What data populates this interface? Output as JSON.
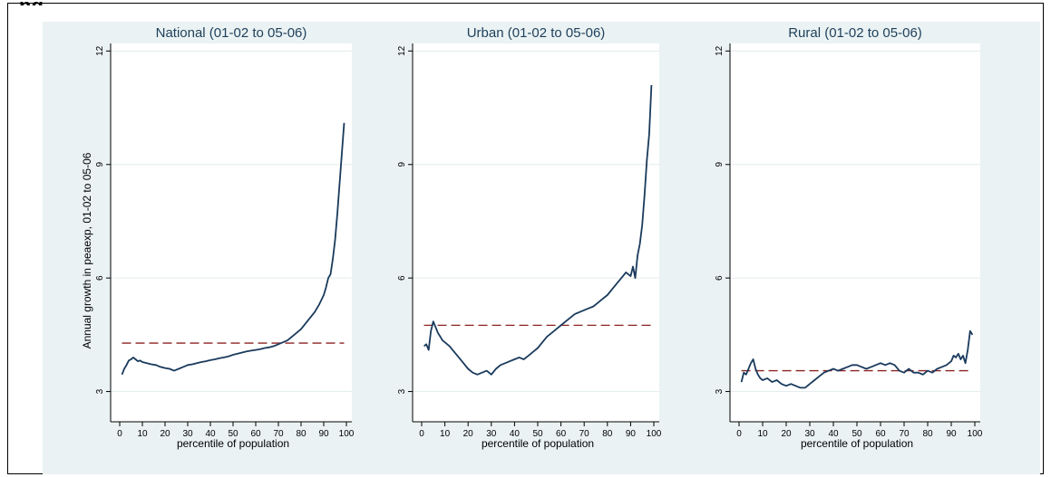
{
  "heading": "ng",
  "colors": {
    "background": "#eaf2f3",
    "plot_bg": "#ffffff",
    "line": "#1a3a5c",
    "mean_line": "#8b2222",
    "grid": "#e3ecee"
  },
  "chart_data": [
    {
      "type": "line",
      "title": "National (01-02 to 05-06)",
      "xlabel": "percentile of population",
      "ylabel": "Annual growth in peaexp, 01-02 to 05-06",
      "xlim": [
        0,
        100
      ],
      "ylim": [
        2.2,
        12.2
      ],
      "xticks": [
        "0",
        "10",
        "20",
        "30",
        "40",
        "50",
        "60",
        "70",
        "80",
        "90",
        "100"
      ],
      "yticks": [
        "3",
        "6",
        "9",
        "12"
      ],
      "mean": 4.28,
      "series": [
        {
          "x": [
            1,
            2,
            3,
            4,
            5,
            6,
            7,
            8,
            9,
            10,
            12,
            14,
            16,
            18,
            20,
            22,
            24,
            26,
            28,
            30,
            32,
            34,
            36,
            38,
            40,
            42,
            44,
            46,
            48,
            50,
            52,
            54,
            56,
            58,
            60,
            62,
            64,
            66,
            68,
            70,
            72,
            74,
            76,
            78,
            80,
            82,
            84,
            86,
            88,
            90,
            91,
            92,
            93,
            94,
            95,
            96,
            97,
            98,
            99
          ],
          "values": [
            3.45,
            3.6,
            3.7,
            3.82,
            3.85,
            3.9,
            3.85,
            3.8,
            3.82,
            3.78,
            3.75,
            3.72,
            3.7,
            3.65,
            3.62,
            3.6,
            3.55,
            3.6,
            3.65,
            3.7,
            3.72,
            3.75,
            3.78,
            3.8,
            3.83,
            3.85,
            3.88,
            3.9,
            3.93,
            3.97,
            4.0,
            4.03,
            4.06,
            4.08,
            4.1,
            4.12,
            4.15,
            4.17,
            4.2,
            4.25,
            4.3,
            4.35,
            4.45,
            4.55,
            4.65,
            4.8,
            4.95,
            5.1,
            5.3,
            5.55,
            5.75,
            6.0,
            6.1,
            6.5,
            7.0,
            7.7,
            8.5,
            9.3,
            10.1
          ]
        }
      ]
    },
    {
      "type": "line",
      "title": "Urban (01-02 to 05-06)",
      "xlabel": "percentile of population",
      "xlim": [
        0,
        100
      ],
      "ylim": [
        2.2,
        12.2
      ],
      "xticks": [
        "0",
        "10",
        "20",
        "30",
        "40",
        "50",
        "60",
        "70",
        "80",
        "90",
        "100"
      ],
      "yticks": [
        "3",
        "6",
        "9",
        "12"
      ],
      "mean": 4.75,
      "series": [
        {
          "x": [
            1,
            2,
            3,
            4,
            5,
            6,
            7,
            8,
            9,
            10,
            12,
            14,
            16,
            18,
            20,
            22,
            24,
            26,
            28,
            30,
            32,
            34,
            36,
            38,
            40,
            42,
            44,
            46,
            48,
            50,
            52,
            54,
            56,
            58,
            60,
            62,
            64,
            66,
            68,
            70,
            72,
            74,
            76,
            78,
            80,
            82,
            84,
            86,
            88,
            90,
            91,
            92,
            93,
            94,
            95,
            96,
            97,
            98,
            99
          ],
          "values": [
            4.2,
            4.25,
            4.1,
            4.6,
            4.85,
            4.7,
            4.55,
            4.45,
            4.35,
            4.3,
            4.2,
            4.05,
            3.9,
            3.75,
            3.6,
            3.5,
            3.45,
            3.5,
            3.55,
            3.45,
            3.6,
            3.7,
            3.75,
            3.8,
            3.85,
            3.9,
            3.85,
            3.95,
            4.05,
            4.15,
            4.3,
            4.45,
            4.55,
            4.65,
            4.75,
            4.85,
            4.95,
            5.05,
            5.1,
            5.15,
            5.2,
            5.25,
            5.35,
            5.45,
            5.55,
            5.7,
            5.85,
            6.0,
            6.15,
            6.05,
            6.3,
            6.0,
            6.6,
            6.9,
            7.4,
            8.2,
            9.1,
            9.8,
            11.1
          ]
        }
      ]
    },
    {
      "type": "line",
      "title": "Rural (01-02 to 05-06)",
      "xlabel": "percentile of population",
      "xlim": [
        0,
        100
      ],
      "ylim": [
        2.2,
        12.2
      ],
      "xticks": [
        "0",
        "10",
        "20",
        "30",
        "40",
        "50",
        "60",
        "70",
        "80",
        "90",
        "100"
      ],
      "yticks": [
        "3",
        "6",
        "9",
        "12"
      ],
      "mean": 3.55,
      "series": [
        {
          "x": [
            1,
            2,
            3,
            4,
            5,
            6,
            7,
            8,
            9,
            10,
            12,
            14,
            16,
            18,
            20,
            22,
            24,
            26,
            28,
            30,
            32,
            34,
            36,
            38,
            40,
            42,
            44,
            46,
            48,
            50,
            52,
            54,
            56,
            58,
            60,
            62,
            64,
            66,
            68,
            70,
            72,
            74,
            76,
            78,
            80,
            82,
            84,
            86,
            88,
            90,
            91,
            92,
            93,
            94,
            95,
            96,
            97,
            98,
            99
          ],
          "values": [
            3.25,
            3.5,
            3.45,
            3.6,
            3.75,
            3.85,
            3.6,
            3.45,
            3.35,
            3.3,
            3.35,
            3.25,
            3.3,
            3.2,
            3.15,
            3.2,
            3.15,
            3.1,
            3.1,
            3.2,
            3.3,
            3.4,
            3.5,
            3.55,
            3.6,
            3.55,
            3.6,
            3.65,
            3.7,
            3.7,
            3.65,
            3.6,
            3.65,
            3.7,
            3.75,
            3.7,
            3.75,
            3.7,
            3.55,
            3.5,
            3.6,
            3.5,
            3.5,
            3.45,
            3.55,
            3.5,
            3.6,
            3.65,
            3.7,
            3.8,
            3.95,
            3.9,
            4.0,
            3.85,
            3.95,
            3.75,
            4.1,
            4.6,
            4.5
          ]
        }
      ]
    }
  ]
}
